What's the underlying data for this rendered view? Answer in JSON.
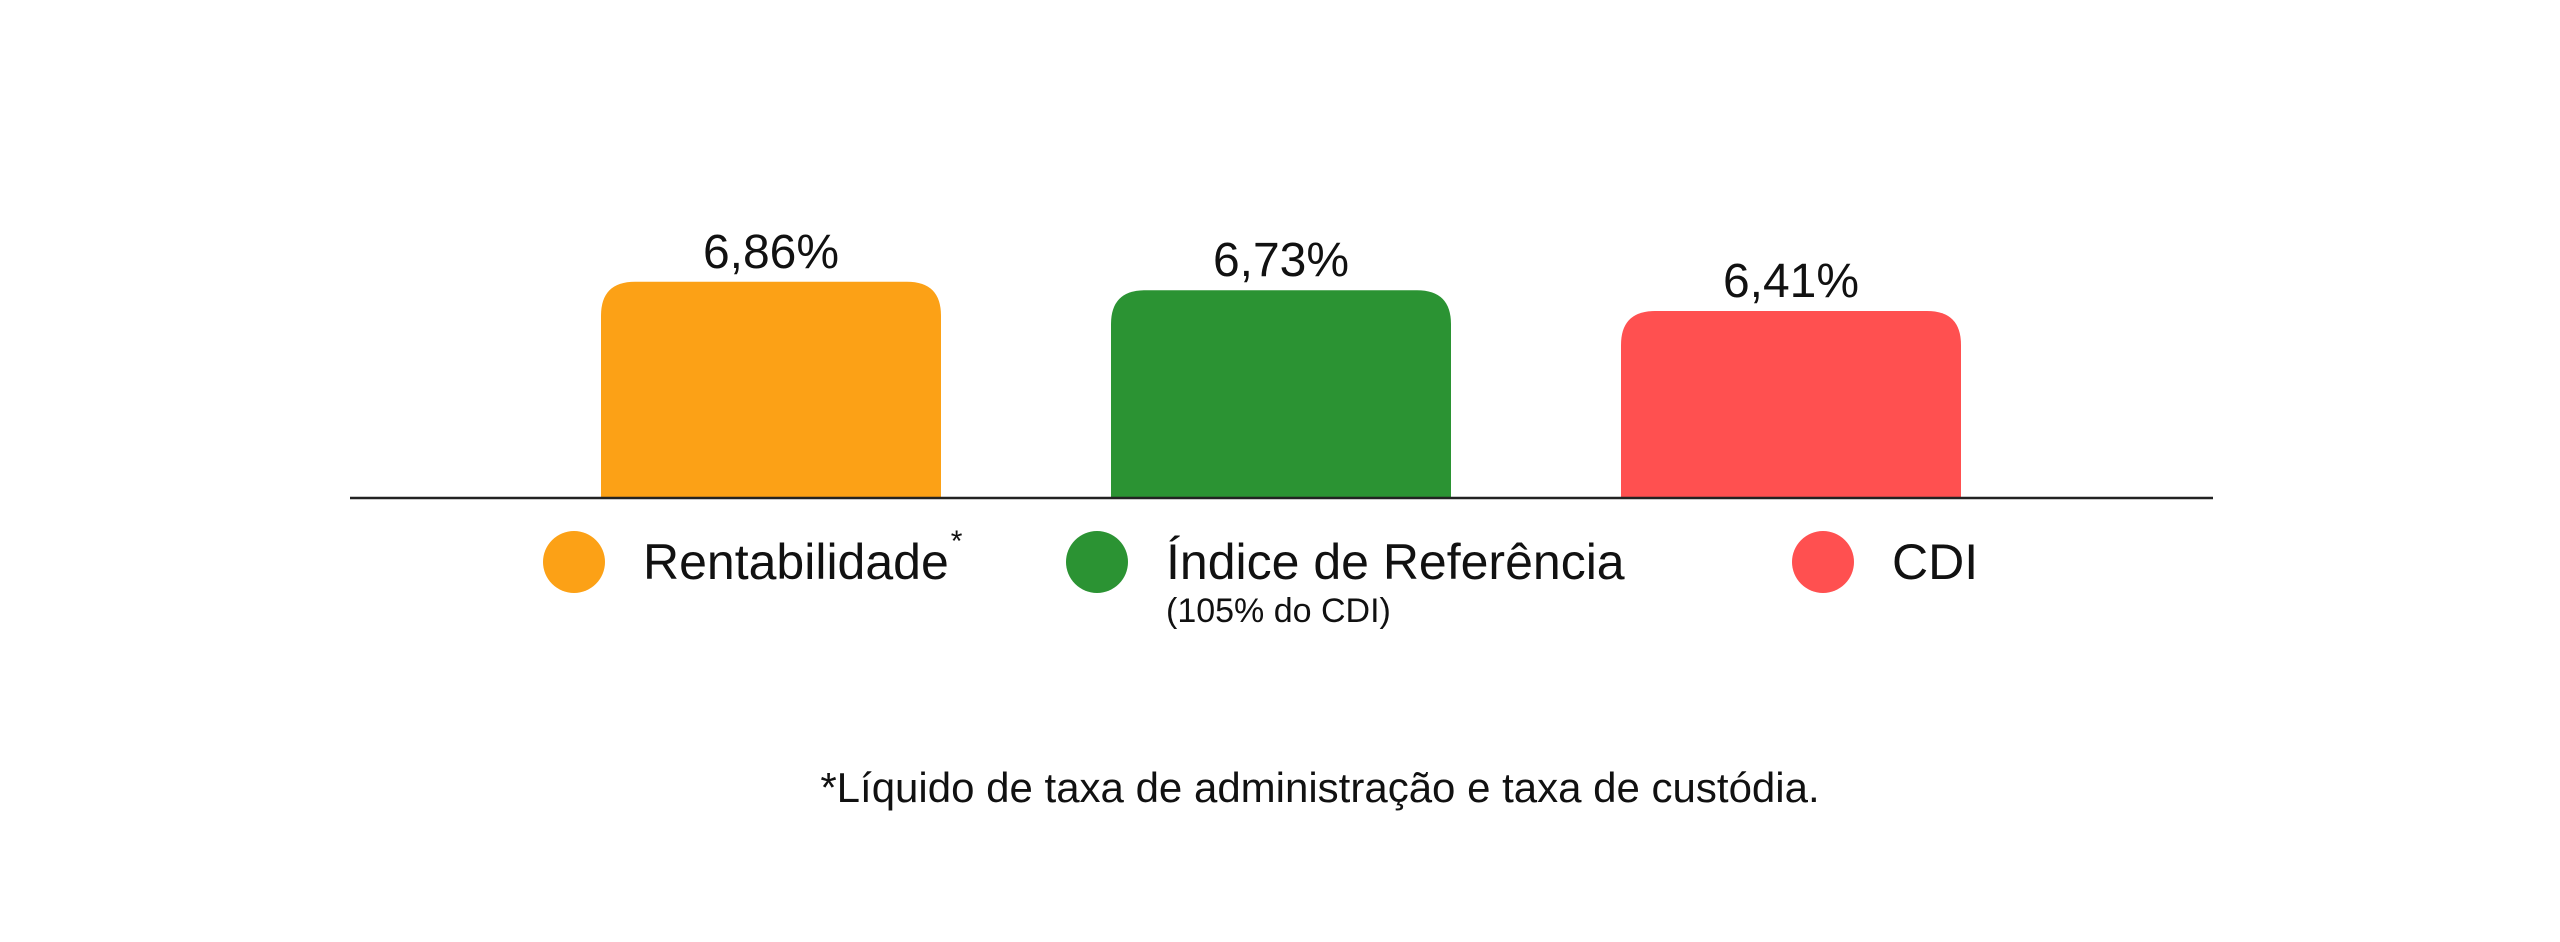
{
  "chart_data": {
    "type": "bar",
    "categories": [
      "Rentabilidade",
      "Índice de Referência",
      "CDI"
    ],
    "values": [
      6.86,
      6.73,
      6.41
    ],
    "value_labels": [
      "6,86%",
      "6,73%",
      "6,41%"
    ],
    "colors": [
      "#FCA116",
      "#2B9333",
      "#FF5050"
    ],
    "title": "",
    "xlabel": "",
    "ylabel": "",
    "grid": false,
    "legend_placement": "bottom",
    "baseline_color": "#222222"
  },
  "legend": {
    "items": [
      {
        "label": "Rentabilidade",
        "superscript": "*",
        "sublabel": "",
        "color": "#FCA116"
      },
      {
        "label": "Índice de Referência",
        "superscript": "",
        "sublabel": "(105% do CDI)",
        "color": "#2B9333"
      },
      {
        "label": "CDI",
        "superscript": "",
        "sublabel": "",
        "color": "#FF5050"
      }
    ]
  },
  "footnote": "*Líquido de taxa de administração e taxa de custódia."
}
